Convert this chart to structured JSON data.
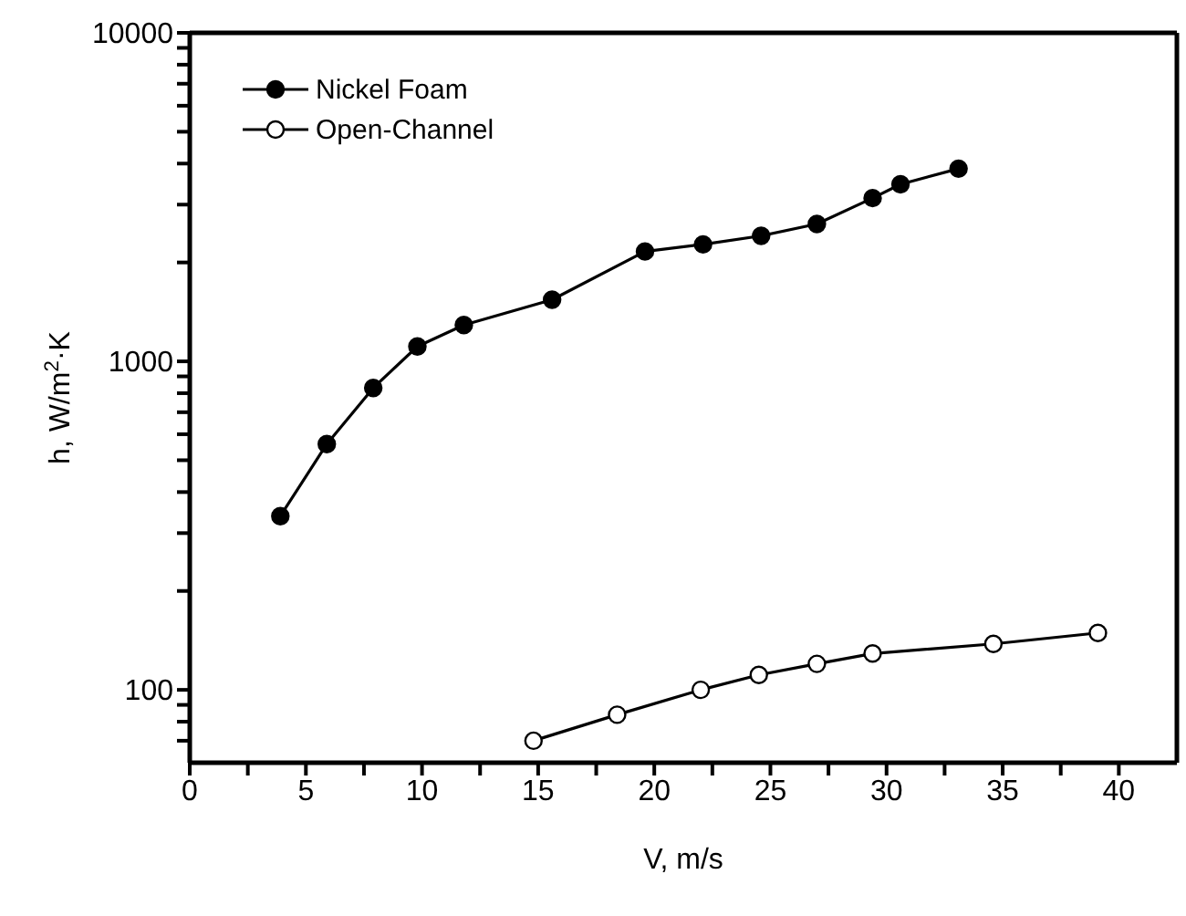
{
  "chart_data": {
    "type": "line",
    "xlabel": "V, m/s",
    "ylabel": "h, W/m$^{2}$·K",
    "log": "y",
    "legend": "top left",
    "marker": "circle",
    "line_style": "solid",
    "xlim": [
      0,
      42.5
    ],
    "ylim": [
      60,
      10000
    ],
    "xticks": [
      0,
      {
        "value": 2.5,
        "label": null
      },
      5,
      {
        "value": 7.5,
        "label": null
      },
      10,
      {
        "value": 12.5,
        "label": null
      },
      15,
      {
        "value": 17.5,
        "label": null
      },
      20,
      {
        "value": 22.5,
        "label": null
      },
      25,
      {
        "value": 27.5,
        "label": null
      },
      30,
      {
        "value": 32.5,
        "label": null
      },
      35,
      {
        "value": 37.5,
        "label": null
      },
      40
    ],
    "yticks": [
      {
        "value": 70,
        "label": null
      },
      {
        "value": 80,
        "label": null
      },
      {
        "value": 90,
        "label": null
      },
      100,
      {
        "value": 200,
        "label": null
      },
      {
        "value": 300,
        "label": null
      },
      {
        "value": 400,
        "label": null
      },
      {
        "value": 500,
        "label": null
      },
      {
        "value": 600,
        "label": null
      },
      {
        "value": 700,
        "label": null
      },
      {
        "value": 800,
        "label": null
      },
      {
        "value": 900,
        "label": null
      },
      1000,
      {
        "value": 2000,
        "label": null
      },
      {
        "value": 3000,
        "label": null
      },
      {
        "value": 4000,
        "label": null
      },
      {
        "value": 5000,
        "label": null
      },
      {
        "value": 6000,
        "label": null
      },
      {
        "value": 7000,
        "label": null
      },
      {
        "value": 8000,
        "label": null
      },
      {
        "value": 9000,
        "label": null
      },
      10000
    ],
    "series": [
      {
        "name": "Nickel Foam",
        "color": "#000000",
        "x": [
          3.9,
          5.9,
          7.9,
          9.8,
          11.8,
          15.6,
          19.6,
          22.1,
          24.6,
          27,
          29.4,
          30.6,
          33.1
        ],
        "values": [
          338,
          560,
          830,
          1110,
          1290,
          1540,
          2160,
          2270,
          2410,
          2620,
          3140,
          3460,
          3860
        ]
      },
      {
        "name": "Open-Channel",
        "color": "#000000",
        "x": [
          14.8,
          18.4,
          22,
          24.5,
          27,
          29.4,
          34.6,
          39.1
        ],
        "values": [
          70,
          84,
          100,
          111,
          120,
          129,
          138,
          149
        ]
      }
    ]
  }
}
